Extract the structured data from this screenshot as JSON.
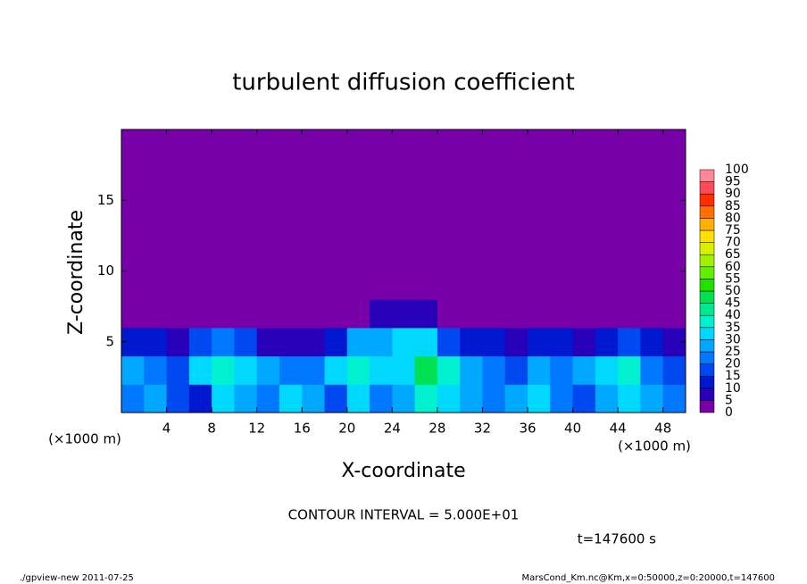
{
  "chart_data": {
    "type": "heatmap",
    "title": "turbulent diffusion coefficient",
    "xlabel": "X-coordinate",
    "ylabel": "Z-coordinate",
    "axis_unit": "(×1000 m)",
    "contour_interval": "CONTOUR INTERVAL = 5.000E+01",
    "time_label": "t=147600 s",
    "footer_left": "./gpview-new  2011-07-25",
    "footer_right": "MarsCond_Km.nc@Km,x=0:50000,z=0:20000,t=147600",
    "xlim": [
      0,
      50
    ],
    "ylim": [
      0,
      20
    ],
    "xticks": [
      4,
      8,
      12,
      16,
      20,
      24,
      28,
      32,
      36,
      40,
      44,
      48
    ],
    "yticks": [
      5,
      10,
      15
    ],
    "x_edges": [
      0,
      2,
      4,
      6,
      8,
      10,
      12,
      14,
      16,
      18,
      20,
      22,
      24,
      26,
      28,
      30,
      32,
      34,
      36,
      38,
      40,
      42,
      44,
      46,
      48,
      50
    ],
    "z_edges": [
      0,
      2,
      4,
      6,
      8,
      10,
      12,
      14,
      16,
      18,
      20
    ],
    "values": [
      [
        20,
        25,
        15,
        10,
        30,
        25,
        20,
        30,
        25,
        15,
        30,
        20,
        25,
        35,
        30,
        25,
        20,
        25,
        30,
        20,
        15,
        25,
        30,
        25,
        20
      ],
      [
        25,
        20,
        15,
        30,
        35,
        30,
        25,
        20,
        20,
        30,
        35,
        30,
        30,
        45,
        35,
        25,
        20,
        15,
        25,
        20,
        25,
        30,
        35,
        20,
        15
      ],
      [
        10,
        10,
        5,
        15,
        20,
        15,
        5,
        5,
        5,
        10,
        25,
        25,
        30,
        30,
        15,
        10,
        10,
        5,
        10,
        10,
        5,
        10,
        15,
        10,
        5
      ],
      [
        0,
        0,
        0,
        0,
        0,
        0,
        0,
        0,
        0,
        0,
        0,
        5,
        5,
        5,
        0,
        0,
        0,
        0,
        0,
        0,
        0,
        0,
        0,
        0,
        0
      ],
      [
        0,
        0,
        0,
        0,
        0,
        0,
        0,
        0,
        0,
        0,
        0,
        0,
        0,
        0,
        0,
        0,
        0,
        0,
        0,
        0,
        0,
        0,
        0,
        0,
        0
      ],
      [
        0,
        0,
        0,
        0,
        0,
        0,
        0,
        0,
        0,
        0,
        0,
        0,
        0,
        0,
        0,
        0,
        0,
        0,
        0,
        0,
        0,
        0,
        0,
        0,
        0
      ],
      [
        0,
        0,
        0,
        0,
        0,
        0,
        0,
        0,
        0,
        0,
        0,
        0,
        0,
        0,
        0,
        0,
        0,
        0,
        0,
        0,
        0,
        0,
        0,
        0,
        0
      ],
      [
        0,
        0,
        0,
        0,
        0,
        0,
        0,
        0,
        0,
        0,
        0,
        0,
        0,
        0,
        0,
        0,
        0,
        0,
        0,
        0,
        0,
        0,
        0,
        0,
        0
      ],
      [
        0,
        0,
        0,
        0,
        0,
        0,
        0,
        0,
        0,
        0,
        0,
        0,
        0,
        0,
        0,
        0,
        0,
        0,
        0,
        0,
        0,
        0,
        0,
        0,
        0
      ],
      [
        0,
        0,
        0,
        0,
        0,
        0,
        0,
        0,
        0,
        0,
        0,
        0,
        0,
        0,
        0,
        0,
        0,
        0,
        0,
        0,
        0,
        0,
        0,
        0,
        0
      ]
    ],
    "levels": [
      0,
      5,
      10,
      15,
      20,
      25,
      30,
      35,
      40,
      45,
      50,
      55,
      60,
      65,
      70,
      75,
      80,
      85,
      90,
      95,
      100
    ],
    "colors": [
      "#7800a8",
      "#2800b8",
      "#0018d0",
      "#0048f0",
      "#0078ff",
      "#00a8ff",
      "#00d8ff",
      "#00f0d0",
      "#00e890",
      "#00e050",
      "#20e000",
      "#60f000",
      "#a0f000",
      "#d8f000",
      "#ffe000",
      "#ffb000",
      "#ff7000",
      "#ff3000",
      "#ff4858",
      "#ff8898"
    ]
  }
}
